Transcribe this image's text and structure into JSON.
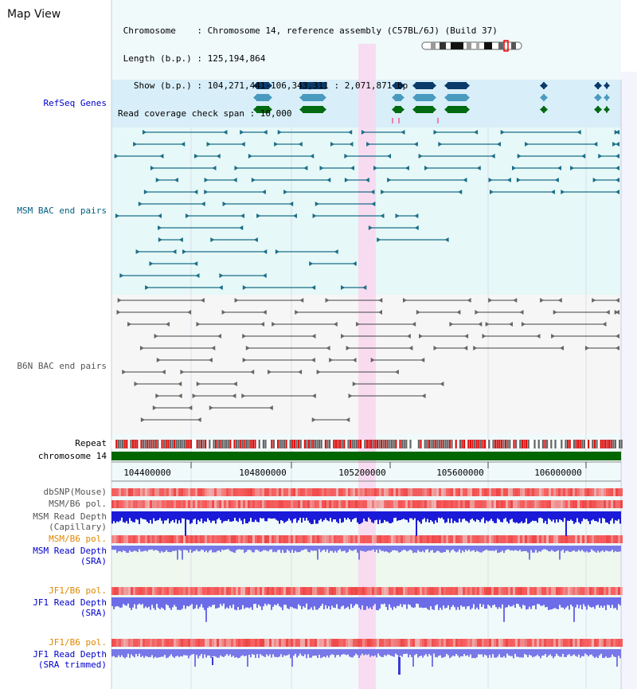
{
  "app": {
    "title": "Map View"
  },
  "info": {
    "chromosome_line": " Chromosome    : Chromosome 14, reference assembly (C57BL/6J) (Build 37)",
    "length_line": " Length (b.p.) : 125,194,864",
    "show_line": "   Show (b.p.) : 104,271,441-106,343,311 : 2,071,871 bp",
    "span_line": "Read coverage check span : 10,000"
  },
  "tracks": {
    "refseq": "RefSeq Genes",
    "msm_bac": "MSM BAC end pairs",
    "b6n_bac": "B6N BAC end pairs",
    "repeat": "Repeat",
    "chromosome": "chromosome 14",
    "dbsnp": "dbSNP(Mouse)",
    "msm_b6_pol": "MSM/B6 pol.",
    "msm_depth_cap_1": "MSM Read Depth",
    "msm_depth_cap_2": "(Capillary)",
    "msm_b6_pol_2": "MSM/B6 pol.",
    "msm_depth_sra_1": "MSM Read Depth",
    "msm_depth_sra_2": "(SRA)",
    "jf1_b6_pol": "JF1/B6 pol.",
    "jf1_depth_sra_1": "JF1 Read Depth",
    "jf1_depth_sra_2": "(SRA)",
    "jf1_b6_pol_2": "JF1/B6 pol.",
    "jf1_depth_trim_1": "JF1 Read Depth",
    "jf1_depth_trim_2": "(SRA trimmed)"
  },
  "axis": {
    "ticks": [
      "104400000",
      "104800000",
      "105200000",
      "105600000",
      "106000000"
    ]
  },
  "colors": {
    "refseq_bg": "#d8eef8",
    "msm_bg": "#e2f8f8",
    "b6n_bg": "#f4f4f4",
    "highlight": "#f8d8f0",
    "chromosome_bar": "#006600",
    "depth_dark": "#2222dd",
    "depth_light": "#8888ee",
    "msm_color": "#006080",
    "b6n_color": "#555555",
    "jf1_color": "#e08800"
  }
}
